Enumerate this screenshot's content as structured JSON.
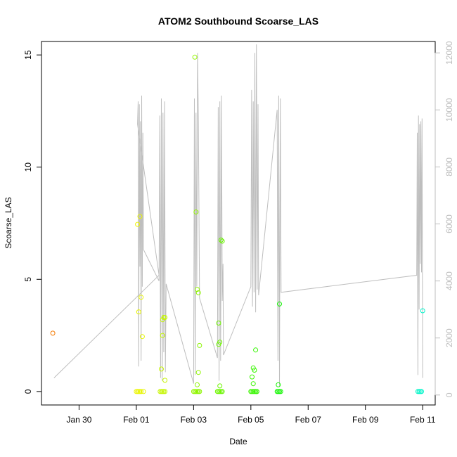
{
  "chart_data": {
    "type": "scatter",
    "title": "ATOM2 Southbound Scoarse_LAS",
    "xlabel": "Date",
    "ylabel": "Scoarse_LAS",
    "x_ticks": [
      "Jan 30",
      "Feb 01",
      "Feb 03",
      "Feb 05",
      "Feb 07",
      "Feb 09",
      "Feb 11"
    ],
    "xlim": [
      "2023-01-28T16:30",
      "2023-02-11T10:30"
    ],
    "ylim": [
      -0.6,
      15.6
    ],
    "y_ticks": [
      0,
      5,
      10,
      15
    ],
    "y2lim": [
      -350,
      12400
    ],
    "y2_ticks": [
      0,
      2000,
      4000,
      6000,
      8000,
      10000,
      12000
    ],
    "y2_color": "#bebebe",
    "grid": false,
    "legend": "none",
    "series": [
      {
        "kind": "points",
        "x": [
          "2023-01-29T02:00",
          "2023-02-01T00:00",
          "2023-02-01T01:00",
          "2023-02-01T02:00",
          "2023-02-01T03:00",
          "2023-02-01T04:00",
          "2023-02-01T01:00",
          "2023-02-01T03:00",
          "2023-02-01T04:00",
          "2023-02-01T05:00",
          "2023-02-01T02:00",
          "2023-02-01T06:00",
          "2023-02-01T20:00",
          "2023-02-01T21:00",
          "2023-02-01T22:00",
          "2023-02-01T23:00",
          "2023-02-02T00:00",
          "2023-02-01T23:00",
          "2023-02-01T22:00",
          "2023-02-02T00:00",
          "2023-02-01T22:00",
          "2023-02-01T21:00",
          "2023-02-02T00:00",
          "2023-02-03T00:00",
          "2023-02-03T01:00",
          "2023-02-03T02:00",
          "2023-02-03T03:00",
          "2023-02-03T04:00",
          "2023-02-03T01:00",
          "2023-02-03T02:00",
          "2023-02-03T03:00",
          "2023-02-03T04:00",
          "2023-02-03T05:00",
          "2023-02-03T04:00",
          "2023-02-03T03:00",
          "2023-02-03T05:00",
          "2023-02-03T20:00",
          "2023-02-03T21:00",
          "2023-02-03T22:00",
          "2023-02-03T23:00",
          "2023-02-04T00:00",
          "2023-02-03T21:00",
          "2023-02-03T22:00",
          "2023-02-03T23:00",
          "2023-02-04T00:00",
          "2023-02-03T21:00",
          "2023-02-03T22:00",
          "2023-02-05T00:00",
          "2023-02-05T01:00",
          "2023-02-05T02:00",
          "2023-02-05T03:00",
          "2023-02-05T04:00",
          "2023-02-05T05:00",
          "2023-02-05T01:00",
          "2023-02-05T02:00",
          "2023-02-05T04:00",
          "2023-02-05T02:00",
          "2023-02-05T03:00",
          "2023-02-05T05:00",
          "2023-02-05T22:00",
          "2023-02-05T23:00",
          "2023-02-06T00:00",
          "2023-02-06T01:00",
          "2023-02-05T23:00",
          "2023-02-06T00:00",
          "2023-02-10T20:00",
          "2023-02-10T21:00",
          "2023-02-10T22:00",
          "2023-02-10T23:00",
          "2023-02-11T00:00"
        ],
        "y": [
          2.6,
          0.0,
          0.0,
          0.0,
          0.0,
          0.0,
          7.45,
          7.8,
          4.2,
          2.45,
          3.55,
          0.0,
          0.0,
          0.0,
          0.0,
          0.0,
          0.0,
          3.3,
          3.2,
          3.3,
          2.5,
          1.0,
          0.5,
          0.0,
          0.0,
          0.0,
          0.0,
          0.0,
          14.9,
          8.0,
          4.55,
          4.4,
          2.05,
          0.85,
          0.3,
          0.0,
          0.0,
          0.0,
          0.0,
          0.0,
          0.0,
          2.1,
          2.2,
          6.75,
          6.7,
          3.05,
          0.25,
          0.0,
          0.0,
          0.0,
          0.0,
          0.0,
          0.0,
          0.65,
          0.35,
          1.85,
          1.05,
          0.95,
          0.0,
          0.0,
          0.0,
          0.0,
          0.0,
          0.3,
          3.9,
          0.0,
          0.0,
          0.0,
          0.0,
          3.6
        ]
      },
      {
        "kind": "line",
        "axis": "right",
        "color": "#bebebe",
        "x": [
          "2023-01-29T03:00",
          "2023-02-01T19:00",
          "2023-02-01T01:00",
          "2023-02-01T01:30",
          "2023-02-01T02:00",
          "2023-02-01T02:30",
          "2023-02-01T03:00",
          "2023-02-01T03:30",
          "2023-02-01T04:00",
          "2023-02-01T04:30",
          "2023-02-01T05:00",
          "2023-02-01T05:30",
          "2023-02-01T06:00",
          "2023-02-01T19:00",
          "2023-02-01T19:40",
          "2023-02-01T20:20",
          "2023-02-01T21:00",
          "2023-02-01T21:40",
          "2023-02-01T22:20",
          "2023-02-01T23:00",
          "2023-02-01T23:40",
          "2023-02-02T00:20",
          "2023-02-02T01:00",
          "2023-02-03T00:00",
          "2023-02-03T00:40",
          "2023-02-03T01:20",
          "2023-02-03T02:00",
          "2023-02-03T02:40",
          "2023-02-03T03:20",
          "2023-02-03T04:00",
          "2023-02-03T05:00",
          "2023-02-03T20:00",
          "2023-02-03T20:40",
          "2023-02-03T21:20",
          "2023-02-03T22:00",
          "2023-02-03T22:40",
          "2023-02-03T23:20",
          "2023-02-04T00:00",
          "2023-02-04T00:40",
          "2023-02-04T01:00",
          "2023-02-05T00:00",
          "2023-02-05T00:40",
          "2023-02-05T01:20",
          "2023-02-05T02:00",
          "2023-02-05T02:40",
          "2023-02-05T03:20",
          "2023-02-05T04:00",
          "2023-02-05T04:40",
          "2023-02-05T05:20",
          "2023-02-05T06:00",
          "2023-02-05T06:30",
          "2023-02-05T22:00",
          "2023-02-05T22:40",
          "2023-02-05T23:20",
          "2023-02-06T00:00",
          "2023-02-06T00:40",
          "2023-02-06T01:20",
          "2023-02-10T19:00",
          "2023-02-10T19:30",
          "2023-02-10T20:00",
          "2023-02-10T20:30",
          "2023-02-10T21:00",
          "2023-02-10T21:30",
          "2023-02-10T22:00",
          "2023-02-10T22:30",
          "2023-02-10T23:00",
          "2023-02-10T23:30",
          "2023-02-11T00:00"
        ],
        "y": [
          600,
          4200,
          9500,
          10300,
          1000,
          10200,
          4500,
          9600,
          1200,
          10500,
          3800,
          9200,
          5100,
          4000,
          9800,
          600,
          10400,
          500,
          9900,
          1500,
          10300,
          800,
          3900,
          400,
          10400,
          700,
          9900,
          3800,
          12000,
          9500,
          3400,
          1300,
          10100,
          500,
          10300,
          1200,
          10500,
          3300,
          4600,
          1400,
          3800,
          10700,
          3100,
          10300,
          3600,
          12000,
          2900,
          12300,
          3700,
          10200,
          3500,
          10000,
          1200,
          10500,
          300,
          10400,
          3600,
          4200,
          9200,
          700,
          9800,
          3000,
          9500,
          4600,
          9600,
          4300,
          9700,
          600
        ]
      }
    ]
  }
}
